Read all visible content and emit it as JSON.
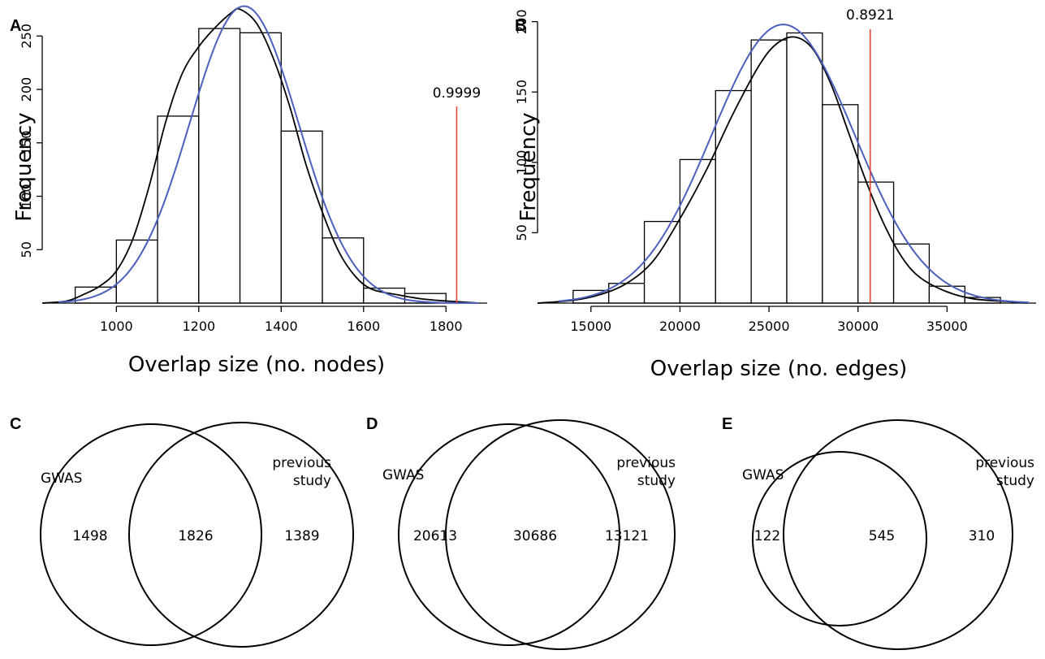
{
  "chart_data": [
    {
      "panel": "A",
      "type": "bar",
      "subtype": "histogram",
      "xlabel": "Overlap size (no. nodes)",
      "ylabel": "Frequency",
      "xlim": [
        820,
        1900
      ],
      "ylim": [
        0,
        270
      ],
      "xticks": [
        1000,
        1200,
        1400,
        1600,
        1800
      ],
      "yticks": [
        50,
        100,
        150,
        200,
        250
      ],
      "bins": [
        {
          "start": 900,
          "end": 1000,
          "value": 15
        },
        {
          "start": 1000,
          "end": 1100,
          "value": 59
        },
        {
          "start": 1100,
          "end": 1200,
          "value": 175
        },
        {
          "start": 1200,
          "end": 1300,
          "value": 257
        },
        {
          "start": 1300,
          "end": 1400,
          "value": 253
        },
        {
          "start": 1400,
          "end": 1500,
          "value": 161
        },
        {
          "start": 1500,
          "end": 1600,
          "value": 61
        },
        {
          "start": 1600,
          "end": 1700,
          "value": 14
        },
        {
          "start": 1700,
          "end": 1800,
          "value": 9
        }
      ],
      "density_curve": {
        "color": "#000000",
        "points": [
          [
            820,
            0
          ],
          [
            880,
            2
          ],
          [
            920,
            8
          ],
          [
            960,
            16
          ],
          [
            1000,
            30
          ],
          [
            1040,
            60
          ],
          [
            1080,
            110
          ],
          [
            1120,
            170
          ],
          [
            1160,
            215
          ],
          [
            1200,
            240
          ],
          [
            1240,
            258
          ],
          [
            1280,
            272
          ],
          [
            1300,
            275
          ],
          [
            1340,
            262
          ],
          [
            1380,
            230
          ],
          [
            1420,
            185
          ],
          [
            1460,
            130
          ],
          [
            1500,
            85
          ],
          [
            1540,
            48
          ],
          [
            1580,
            25
          ],
          [
            1620,
            13
          ],
          [
            1680,
            8
          ],
          [
            1740,
            4
          ],
          [
            1800,
            2
          ],
          [
            1880,
            0
          ]
        ]
      },
      "normal_fit": {
        "color": "#4c5fbd",
        "mean": 1310,
        "sd": 132,
        "peak": 278
      },
      "reference_line": {
        "value": 1826,
        "label": "0.9999",
        "color": "#e8402a"
      }
    },
    {
      "panel": "B",
      "type": "bar",
      "subtype": "histogram",
      "xlabel": "Overlap size (no. edges)",
      "ylabel": "Frequency",
      "xlim": [
        12000,
        40000
      ],
      "ylim": [
        0,
        205
      ],
      "xticks": [
        15000,
        20000,
        25000,
        30000,
        35000
      ],
      "yticks": [
        50,
        100,
        150,
        200
      ],
      "bins": [
        {
          "start": 14000,
          "end": 16000,
          "value": 9
        },
        {
          "start": 16000,
          "end": 18000,
          "value": 14
        },
        {
          "start": 18000,
          "end": 20000,
          "value": 58
        },
        {
          "start": 20000,
          "end": 22000,
          "value": 102
        },
        {
          "start": 22000,
          "end": 24000,
          "value": 151
        },
        {
          "start": 24000,
          "end": 26000,
          "value": 187
        },
        {
          "start": 26000,
          "end": 28000,
          "value": 192
        },
        {
          "start": 28000,
          "end": 30000,
          "value": 141
        },
        {
          "start": 30000,
          "end": 32000,
          "value": 86
        },
        {
          "start": 32000,
          "end": 34000,
          "value": 42
        },
        {
          "start": 34000,
          "end": 36000,
          "value": 12
        },
        {
          "start": 36000,
          "end": 38000,
          "value": 4
        }
      ],
      "density_curve": {
        "color": "#000000",
        "points": [
          [
            12000,
            0
          ],
          [
            14000,
            2
          ],
          [
            15500,
            6
          ],
          [
            17000,
            14
          ],
          [
            18500,
            30
          ],
          [
            20000,
            60
          ],
          [
            21500,
            95
          ],
          [
            23000,
            135
          ],
          [
            24500,
            170
          ],
          [
            25500,
            185
          ],
          [
            26500,
            189
          ],
          [
            27500,
            180
          ],
          [
            28500,
            155
          ],
          [
            29500,
            120
          ],
          [
            30500,
            85
          ],
          [
            31500,
            55
          ],
          [
            32500,
            32
          ],
          [
            33500,
            18
          ],
          [
            35000,
            8
          ],
          [
            36500,
            3
          ],
          [
            38500,
            1
          ],
          [
            39500,
            0
          ]
        ]
      },
      "normal_fit": {
        "color": "#4c5fbd",
        "mean": 25800,
        "sd": 4000,
        "peak": 198
      },
      "reference_line": {
        "value": 30686,
        "label": "0.8921",
        "color": "#e8402a"
      }
    }
  ],
  "panels": {
    "A": "A",
    "B": "B",
    "C": "C",
    "D": "D",
    "E": "E"
  },
  "venn": [
    {
      "panel": "C",
      "left_label": "GWAS",
      "right_label_1": "previous",
      "right_label_2": "study",
      "left_only": "1498",
      "overlap": "1826",
      "right_only": "1389"
    },
    {
      "panel": "D",
      "left_label": "GWAS",
      "right_label_1": "previous",
      "right_label_2": "study",
      "left_only": "20613",
      "overlap": "30686",
      "right_only": "13121"
    },
    {
      "panel": "E",
      "left_label": "GWAS",
      "right_label_1": "previous",
      "right_label_2": "study",
      "left_only": "122",
      "overlap": "545",
      "right_only": "310"
    }
  ]
}
